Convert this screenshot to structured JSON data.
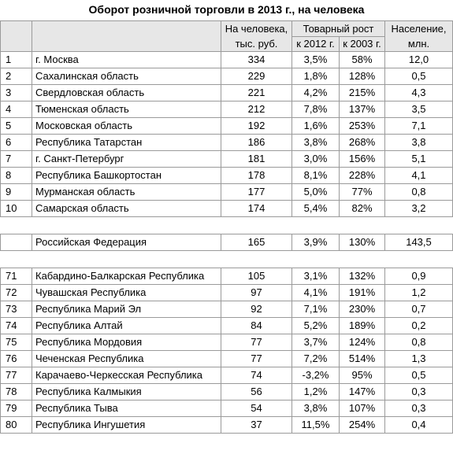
{
  "title": "Оборот розничной торговли в 2013 г., на человека",
  "headers": {
    "per_capita": "На человека,",
    "per_capita_unit": "тыс. руб.",
    "growth": "Товарный рост",
    "growth_2012": "к 2012 г.",
    "growth_2003": "к 2003 г.",
    "population": "Население,",
    "population_unit": "млн."
  },
  "top_rows": [
    {
      "rank": "1",
      "name": "г. Москва",
      "per_capita": "334",
      "g2012": "3,5%",
      "g2003": "58%",
      "pop": "12,0"
    },
    {
      "rank": "2",
      "name": "Сахалинская область",
      "per_capita": "229",
      "g2012": "1,8%",
      "g2003": "128%",
      "pop": "0,5"
    },
    {
      "rank": "3",
      "name": "Свердловская область",
      "per_capita": "221",
      "g2012": "4,2%",
      "g2003": "215%",
      "pop": "4,3"
    },
    {
      "rank": "4",
      "name": "Тюменская область",
      "per_capita": "212",
      "g2012": "7,8%",
      "g2003": "137%",
      "pop": "3,5"
    },
    {
      "rank": "5",
      "name": "Московская область",
      "per_capita": "192",
      "g2012": "1,6%",
      "g2003": "253%",
      "pop": "7,1"
    },
    {
      "rank": "6",
      "name": "Республика Татарстан",
      "per_capita": "186",
      "g2012": "3,8%",
      "g2003": "268%",
      "pop": "3,8"
    },
    {
      "rank": "7",
      "name": "г. Санкт-Петербург",
      "per_capita": "181",
      "g2012": "3,0%",
      "g2003": "156%",
      "pop": "5,1"
    },
    {
      "rank": "8",
      "name": "Республика Башкортостан",
      "per_capita": "178",
      "g2012": "8,1%",
      "g2003": "228%",
      "pop": "4,1"
    },
    {
      "rank": "9",
      "name": "Мурманская область",
      "per_capita": "177",
      "g2012": "5,0%",
      "g2003": "77%",
      "pop": "0,8"
    },
    {
      "rank": "10",
      "name": "Самарская область",
      "per_capita": "174",
      "g2012": "5,4%",
      "g2003": "82%",
      "pop": "3,2"
    }
  ],
  "federation_row": {
    "rank": "",
    "name": "Российская Федерация",
    "per_capita": "165",
    "g2012": "3,9%",
    "g2003": "130%",
    "pop": "143,5"
  },
  "bottom_rows": [
    {
      "rank": "71",
      "name": "Кабардино-Балкарская Республика",
      "per_capita": "105",
      "g2012": "3,1%",
      "g2003": "132%",
      "pop": "0,9"
    },
    {
      "rank": "72",
      "name": "Чувашская Республика",
      "per_capita": "97",
      "g2012": "4,1%",
      "g2003": "191%",
      "pop": "1,2"
    },
    {
      "rank": "73",
      "name": "Республика Марий Эл",
      "per_capita": "92",
      "g2012": "7,1%",
      "g2003": "230%",
      "pop": "0,7"
    },
    {
      "rank": "74",
      "name": "Республика Алтай",
      "per_capita": "84",
      "g2012": "5,2%",
      "g2003": "189%",
      "pop": "0,2"
    },
    {
      "rank": "75",
      "name": "Республика Мордовия",
      "per_capita": "77",
      "g2012": "3,7%",
      "g2003": "124%",
      "pop": "0,8"
    },
    {
      "rank": "76",
      "name": "Чеченская Республика",
      "per_capita": "77",
      "g2012": "7,2%",
      "g2003": "514%",
      "pop": "1,3"
    },
    {
      "rank": "77",
      "name": "Карачаево-Черкесская Республика",
      "per_capita": "74",
      "g2012": "-3,2%",
      "g2003": "95%",
      "pop": "0,5"
    },
    {
      "rank": "78",
      "name": "Республика Калмыкия",
      "per_capita": "56",
      "g2012": "1,2%",
      "g2003": "147%",
      "pop": "0,3"
    },
    {
      "rank": "79",
      "name": "Республика Тыва",
      "per_capita": "54",
      "g2012": "3,8%",
      "g2003": "107%",
      "pop": "0,3"
    },
    {
      "rank": "80",
      "name": "Республика Ингушетия",
      "per_capita": "37",
      "g2012": "11,5%",
      "g2003": "254%",
      "pop": "0,4"
    }
  ]
}
